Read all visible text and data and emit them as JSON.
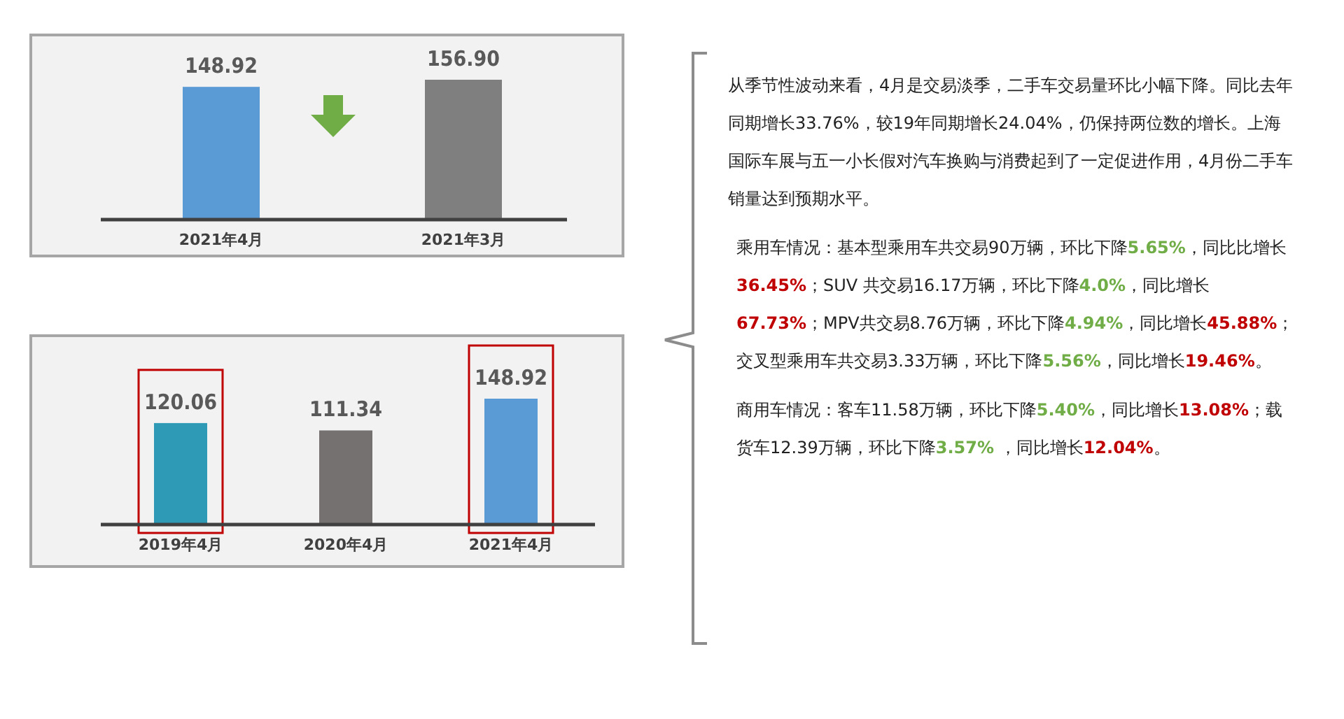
{
  "chart_data": [
    {
      "type": "bar",
      "categories": [
        "2021年4月",
        "2021年3月"
      ],
      "colors": [
        "#5b9bd5",
        "#7f7f7f"
      ],
      "values": [
        148.92,
        156.9
      ],
      "value_labels": [
        "148.92",
        "156.90"
      ]
    },
    {
      "type": "bar",
      "categories": [
        "2019年4月",
        "2020年4月",
        "2021年4月"
      ],
      "colors": [
        "#2e9ab5",
        "#767171",
        "#5b9bd5"
      ],
      "values": [
        120.06,
        111.34,
        148.92
      ],
      "value_labels": [
        "120.06",
        "111.34",
        "148.92"
      ]
    },
    {
      "type": "other",
      "colors": [
        "#70ad47",
        "#c00000"
      ],
      "annotations": [
        "从季节性波动来看，4月是交易淡季，二手车交易量环比小幅下降。同比去年同期增长33.76%，较19年同期增长24.04%，仍保持两位数的增长。上海国际车展与五一小长假对汽车换购与消费起到了一定促进作用，4月份二手车销量达到预期水平。",
        "乘用车情况：基本型乘用车共交易90万辆，环比下降**5.65%**，同比比增长**36.45%**；SUV 共交易16.17万辆，环比下降**4.0%**，同比增长**67.73%**；MPV共交易8.76万辆，环比下降**4.94%**，同比增长**45.88%**；交叉型乘用车共交易3.33万辆，环比下降**5.56%**，同比增长**19.46%**。",
        "商用车情况：客车11.58万辆，环比下降**5.40%**，同比增长**13.08%**；载货车12.39万辆，环比下降**3.57%** ，同比增长**12.04%**。"
      ]
    }
  ]
}
